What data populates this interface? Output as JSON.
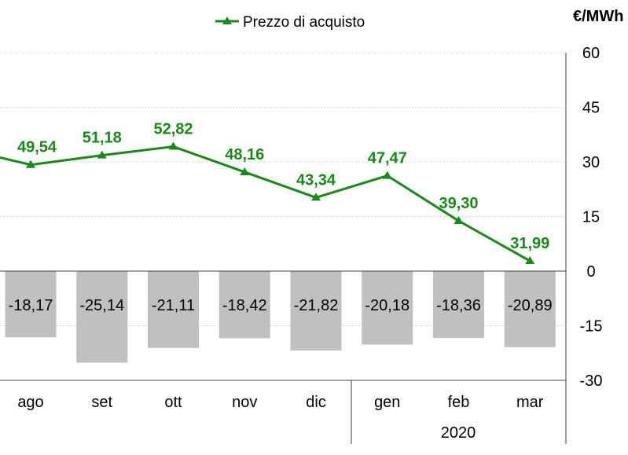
{
  "chart_data": {
    "type": "bar+line",
    "unit_label": "€/MWh",
    "categories": [
      "ago",
      "set",
      "ott",
      "nov",
      "dic",
      "gen",
      "feb",
      "mar"
    ],
    "year_label": "2020",
    "ylim": [
      -30,
      60
    ],
    "yticks": [
      60,
      45,
      30,
      15,
      0,
      -15,
      -30
    ],
    "grid": true,
    "legend": {
      "position": "top-center",
      "entries": [
        "Prezzo di acquisto"
      ]
    },
    "series": [
      {
        "name": "Prezzo di acquisto",
        "type": "line",
        "plot_values": [
          29.2,
          31.8,
          34.2,
          27.2,
          20.2,
          26.2,
          13.8,
          2.8
        ],
        "labels": [
          "49,54",
          "51,18",
          "52,82",
          "48,16",
          "43,34",
          "47,47",
          "39,30",
          "31,99"
        ],
        "color": "#178a17"
      },
      {
        "type": "bar",
        "values": [
          -18.17,
          -25.14,
          -21.11,
          -18.42,
          -21.82,
          -20.18,
          -18.36,
          -20.89
        ],
        "labels": [
          "-18,17",
          "-25,14",
          "-21,11",
          "-18,42",
          "-21,82",
          "-20,18",
          "-18,36",
          "-20,89"
        ],
        "color": "#c0c0c0"
      }
    ],
    "colors": {
      "axis": "#404040",
      "grid": "#d9d9d9",
      "text": "#000000"
    }
  }
}
